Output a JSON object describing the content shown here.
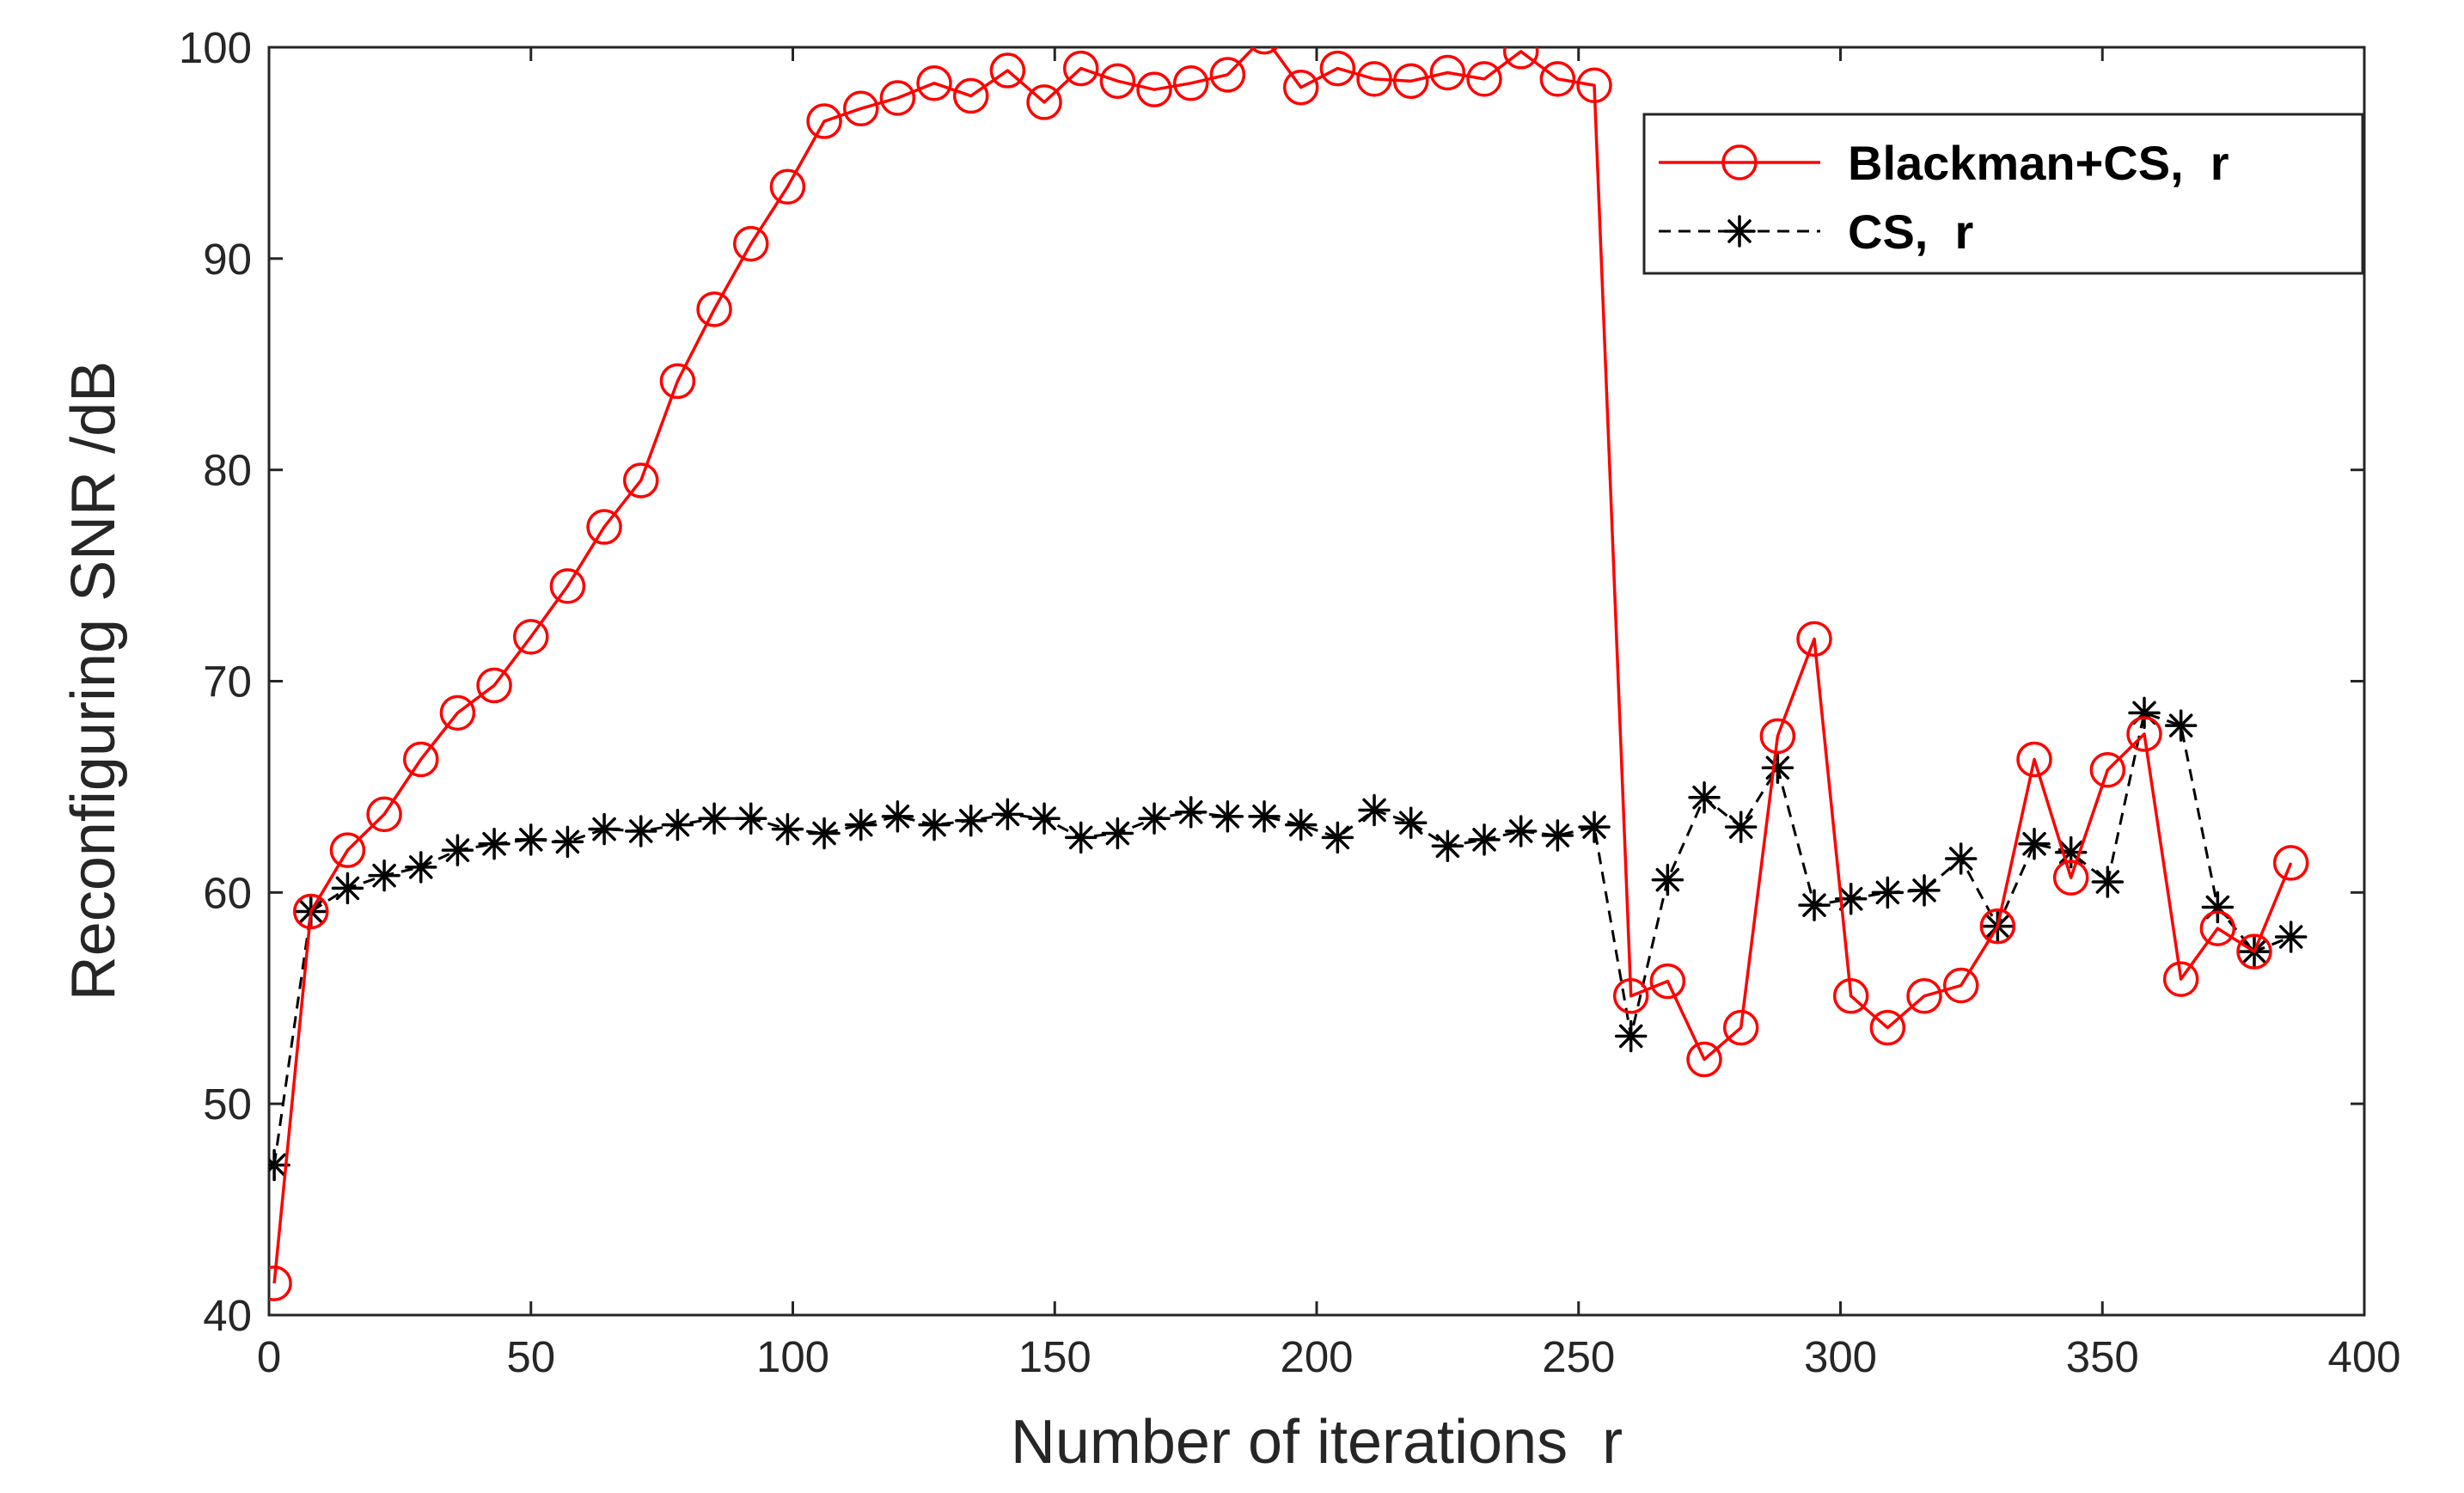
{
  "chart_data": {
    "type": "line",
    "title": "",
    "xlabel": "Number of iterations  r",
    "ylabel": "Reconfiguring SNR /dB",
    "xlim": [
      0,
      400
    ],
    "ylim": [
      40,
      100
    ],
    "xticks": [
      0,
      50,
      100,
      150,
      200,
      250,
      300,
      350,
      400
    ],
    "yticks": [
      40,
      50,
      60,
      70,
      80,
      90,
      100
    ],
    "grid": false,
    "legend_position": "top-right",
    "series": [
      {
        "name": "Blackman+CS,  r",
        "color": "#ff0000",
        "line_style": "solid",
        "marker": "circle",
        "x": [
          1,
          8,
          15,
          22,
          29,
          36,
          43,
          50,
          57,
          64,
          71,
          78,
          85,
          92,
          99,
          106,
          113,
          120,
          127,
          134,
          141,
          148,
          155,
          162,
          169,
          176,
          183,
          190,
          197,
          204,
          211,
          218,
          225,
          232,
          239,
          246,
          253,
          260,
          267,
          274,
          281,
          288,
          295,
          302,
          309,
          316,
          323,
          330,
          337,
          344,
          351,
          358,
          365,
          372,
          379,
          386
        ],
        "y": [
          41.5,
          59.1,
          62,
          63.7,
          66.3,
          68.5,
          69.8,
          72.1,
          74.5,
          77.3,
          79.5,
          84.2,
          87.6,
          90.7,
          93.4,
          96.5,
          97.1,
          97.6,
          98.3,
          97.7,
          98.9,
          97.4,
          99,
          98.4,
          98,
          98.3,
          98.7,
          100.5,
          98.1,
          99,
          98.5,
          98.4,
          98.8,
          98.5,
          99.8,
          98.5,
          98.2,
          55.1,
          55.8,
          52.1,
          53.6,
          67.4,
          72,
          55.1,
          53.6,
          55.1,
          55.6,
          58.4,
          66.3,
          60.7,
          65.8,
          67.5,
          55.9,
          58.3,
          57.2,
          61.4
        ]
      },
      {
        "name": "CS,  r",
        "color": "#000000",
        "line_style": "dashed",
        "marker": "asterisk",
        "x": [
          1,
          8,
          15,
          22,
          29,
          36,
          43,
          50,
          57,
          64,
          71,
          78,
          85,
          92,
          99,
          106,
          113,
          120,
          127,
          134,
          141,
          148,
          155,
          162,
          169,
          176,
          183,
          190,
          197,
          204,
          211,
          218,
          225,
          232,
          239,
          246,
          253,
          260,
          267,
          274,
          281,
          288,
          295,
          302,
          309,
          316,
          323,
          330,
          337,
          344,
          351,
          358,
          365,
          372,
          379,
          386
        ],
        "y": [
          47.1,
          59.1,
          60.2,
          60.8,
          61.2,
          62,
          62.3,
          62.5,
          62.4,
          63,
          62.9,
          63.2,
          63.5,
          63.5,
          63,
          62.8,
          63.2,
          63.6,
          63.2,
          63.4,
          63.7,
          63.5,
          62.6,
          62.8,
          63.5,
          63.8,
          63.6,
          63.6,
          63.2,
          62.6,
          63.9,
          63.3,
          62.2,
          62.5,
          62.9,
          62.7,
          63.1,
          53.2,
          60.6,
          64.5,
          63.1,
          65.9,
          59.4,
          59.7,
          60,
          60.1,
          61.6,
          58.4,
          62.3,
          61.9,
          60.5,
          68.5,
          67.9,
          59.3,
          57.2,
          57.9
        ]
      }
    ]
  }
}
